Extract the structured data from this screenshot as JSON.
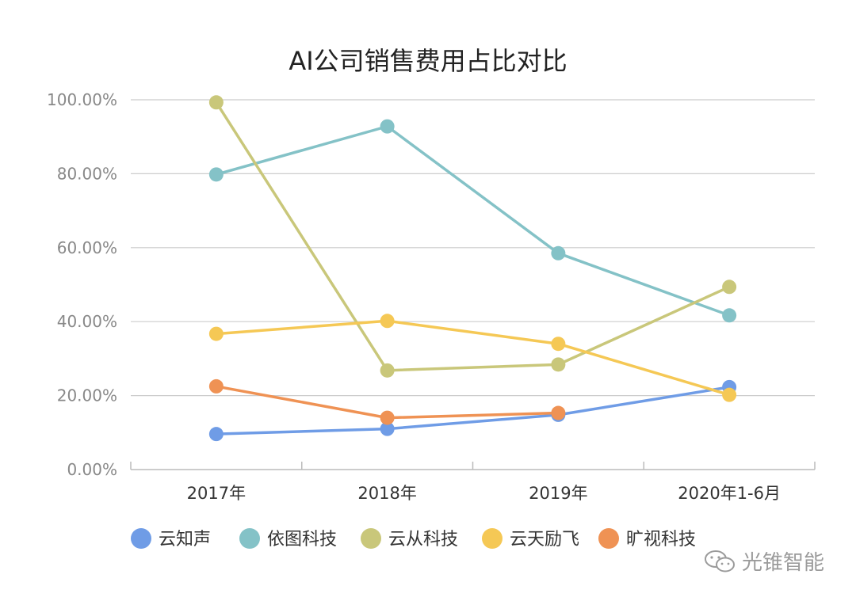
{
  "chart_data": {
    "type": "line",
    "title": "AI公司销售费用占比对比",
    "xlabel": "",
    "ylabel": "",
    "categories": [
      "2017年",
      "2018年",
      "2019年",
      "2020年1-6月"
    ],
    "ylim": [
      0,
      100
    ],
    "y_ticks": [
      0,
      20,
      40,
      60,
      80,
      100
    ],
    "y_tick_labels": [
      "0.00%",
      "20.00%",
      "40.00%",
      "60.00%",
      "80.00%",
      "100.00%"
    ],
    "grid": true,
    "legend_position": "bottom",
    "series": [
      {
        "name": "云知声",
        "color": "#6f9ce6",
        "values": [
          9.6,
          11.0,
          14.8,
          22.3
        ]
      },
      {
        "name": "依图科技",
        "color": "#84c2c7",
        "values": [
          79.8,
          92.8,
          58.5,
          41.7
        ]
      },
      {
        "name": "云从科技",
        "color": "#c9c77a",
        "values": [
          99.3,
          26.8,
          28.4,
          49.4
        ]
      },
      {
        "name": "云天励飞",
        "color": "#f5c855",
        "values": [
          36.7,
          40.2,
          34.0,
          20.2
        ]
      },
      {
        "name": "旷视科技",
        "color": "#ef9254",
        "values": [
          22.5,
          14.0,
          15.3,
          null
        ]
      }
    ]
  },
  "watermark": {
    "text": "光锥智能",
    "icon": "wechat-icon"
  }
}
